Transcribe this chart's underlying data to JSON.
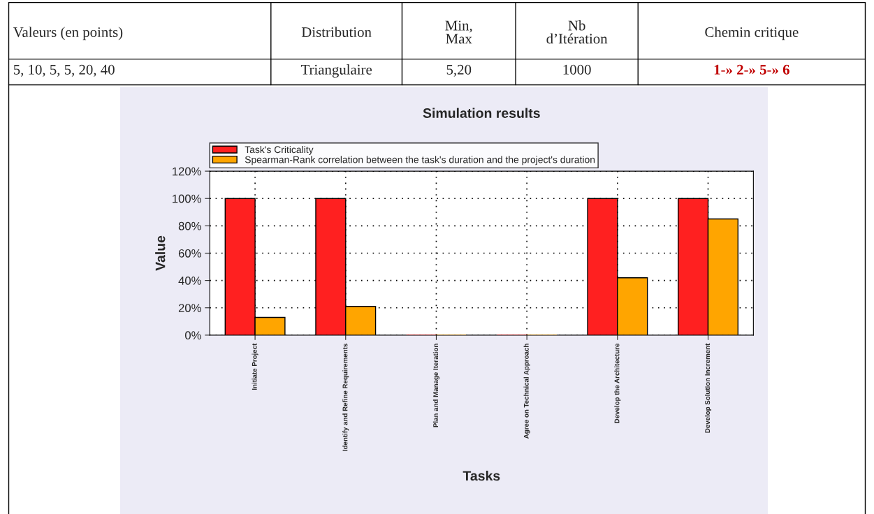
{
  "chart_data": {
    "type": "bar",
    "title": "Simulation results",
    "xlabel": "Tasks",
    "ylabel": "Value",
    "categories": [
      "Initiate Project",
      "Identify and Refine Requirements",
      "Plan and Manage Iteration",
      "Agree on Technical Approach",
      "Develop the Architecture",
      "Develop Solution Increment"
    ],
    "series": [
      {
        "name": "Task's Criticality",
        "color": "#ff2020",
        "values": [
          100,
          100,
          0,
          0,
          100,
          100
        ]
      },
      {
        "name": "Spearman-Rank correlation between the task's duration and the project's duration",
        "color": "#ffa500",
        "values": [
          13,
          21,
          0,
          0,
          42,
          85
        ]
      }
    ],
    "ylim": [
      0,
      120
    ],
    "yticks": [
      {
        "value": 0,
        "label": "0%"
      },
      {
        "value": 20,
        "label": "20%"
      },
      {
        "value": 40,
        "label": "40%"
      },
      {
        "value": 60,
        "label": "60%"
      },
      {
        "value": 80,
        "label": "80%"
      },
      {
        "value": 100,
        "label": "100%"
      },
      {
        "value": 120,
        "label": "120%"
      }
    ],
    "grid": true,
    "legend": "top",
    "annotations": [
      "Valeurs (en points)",
      "Distribution",
      "Min, Max",
      "Nb d’Itération",
      "Chemin critique",
      "5, 10, 5, 5, 20, 40",
      "Triangulaire",
      "5,20",
      "1000",
      "1-» 2-» 5-» 6"
    ]
  }
}
